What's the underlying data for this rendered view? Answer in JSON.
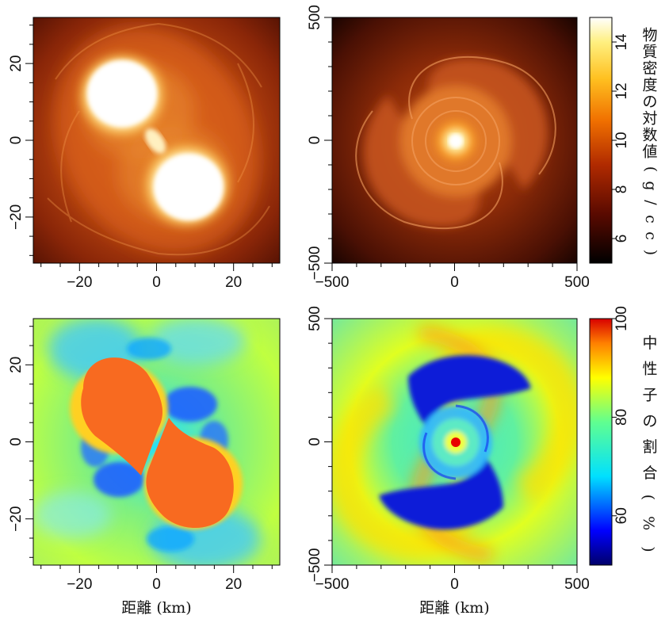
{
  "chart_data": [
    {
      "type": "heatmap",
      "title": "",
      "xlabel": "",
      "ylabel": "",
      "xlim": [
        -32,
        32
      ],
      "ylim": [
        -32,
        32
      ],
      "xticks": [
        "−20",
        "0",
        "20"
      ],
      "yticks": [
        "20",
        "0",
        "−20"
      ],
      "colormap": "hot",
      "colorbar": "shared density"
    },
    {
      "type": "heatmap",
      "title": "",
      "xlabel": "",
      "ylabel": "",
      "xlim": [
        -500,
        500
      ],
      "ylim": [
        -500,
        500
      ],
      "xticks": [
        "−500",
        "0",
        "500"
      ],
      "yticks": [
        "500",
        "0",
        "−500"
      ],
      "colormap": "hot",
      "colorbar": {
        "label": "物質密度の対数値 (g/cc)",
        "range": [
          5,
          15
        ],
        "ticks": [
          "14",
          "12",
          "10",
          "8",
          "6"
        ]
      }
    },
    {
      "type": "heatmap",
      "title": "",
      "xlabel": "距離 (km)",
      "ylabel": "",
      "xlim": [
        -32,
        32
      ],
      "ylim": [
        -32,
        32
      ],
      "xticks": [
        "−20",
        "0",
        "20"
      ],
      "yticks": [
        "20",
        "0",
        "−20"
      ],
      "colormap": "jet",
      "colorbar": "shared neutron fraction"
    },
    {
      "type": "heatmap",
      "title": "",
      "xlabel": "距離 (km)",
      "ylabel": "",
      "xlim": [
        -500,
        500
      ],
      "ylim": [
        -500,
        500
      ],
      "xticks": [
        "−500",
        "0",
        "500"
      ],
      "yticks": [
        "500",
        "0",
        "−500"
      ],
      "colormap": "jet",
      "colorbar": {
        "label": "中性子の割合 (%)",
        "range": [
          50,
          100
        ],
        "ticks": [
          "100",
          "80",
          "60"
        ]
      }
    }
  ],
  "colors": {
    "hot_low": "#000000",
    "hot_mid": "#e06000",
    "hot_high": "#ffffff",
    "jet_low": "#000080",
    "jet_mid": "#00e0ff",
    "jet_high": "#e00000"
  }
}
